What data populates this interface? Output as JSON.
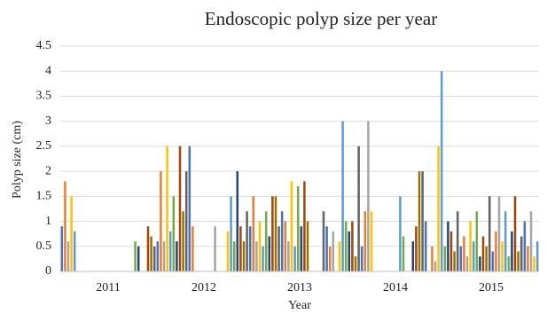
{
  "chart_data": {
    "type": "bar",
    "title": "Endoscopic polyp size per year",
    "x_label": "Year",
    "y_label": "Polyp size (cm)",
    "ylim": [
      0,
      4.5
    ],
    "yticks": [
      0,
      0.5,
      1,
      1.5,
      2,
      2.5,
      3,
      3.5,
      4,
      4.5
    ],
    "grid": true,
    "colors": [
      "#4472c4",
      "#ed7d31",
      "#a5a5a5",
      "#ffc000",
      "#5b9bd5",
      "#70ad47",
      "#264478",
      "#9e480e",
      "#997300",
      "#636363"
    ],
    "groups": [
      {
        "name": "2011",
        "values": [
          0.9,
          1.8,
          0.6,
          1.5,
          0.8,
          null,
          null,
          null,
          null,
          null,
          null,
          null,
          null,
          null,
          null,
          null,
          null,
          null,
          null,
          null,
          null,
          null,
          null,
          0.6,
          0.5,
          null,
          null,
          0.9,
          0.7,
          0.5
        ]
      },
      {
        "name": "2012",
        "values": [
          0.6,
          2.0,
          0.6,
          2.5,
          0.8,
          1.5,
          0.6,
          2.5,
          1.2,
          2.0,
          2.5,
          0.9,
          null,
          null,
          null,
          null,
          null,
          null,
          0.9,
          null,
          null,
          null,
          0.8,
          1.5,
          0.6,
          2.0,
          0.9,
          0.6,
          1.2,
          0.9
        ]
      },
      {
        "name": "2013",
        "values": [
          1.5,
          0.6,
          1.0,
          0.5,
          1.2,
          0.7,
          1.5,
          1.5,
          0.9,
          1.2,
          1.0,
          0.6,
          1.8,
          0.5,
          1.7,
          0.9,
          1.8,
          1.0,
          null,
          null,
          null,
          null,
          1.2,
          0.9,
          0.5,
          0.8,
          null,
          0.6,
          3.0,
          1.0
        ]
      },
      {
        "name": "2014",
        "values": [
          0.8,
          1.0,
          0.3,
          2.5,
          0.5,
          1.2,
          3.0,
          1.2,
          null,
          null,
          null,
          null,
          null,
          null,
          null,
          null,
          1.5,
          0.7,
          null,
          null,
          0.6,
          0.9,
          2.0,
          2.0,
          1.0,
          null,
          0.5,
          0.2,
          2.5,
          4.0
        ]
      },
      {
        "name": "2015",
        "values": [
          0.5,
          1.0,
          0.8,
          0.4,
          1.2,
          0.5,
          0.7,
          0.3,
          1.0,
          0.6,
          1.2,
          0.3,
          0.7,
          0.5,
          1.5,
          0.4,
          0.8,
          1.5,
          0.6,
          1.2,
          0.3,
          0.8,
          1.5,
          0.4,
          0.7,
          1.0,
          0.5,
          1.2,
          0.3,
          0.6
        ]
      }
    ]
  }
}
